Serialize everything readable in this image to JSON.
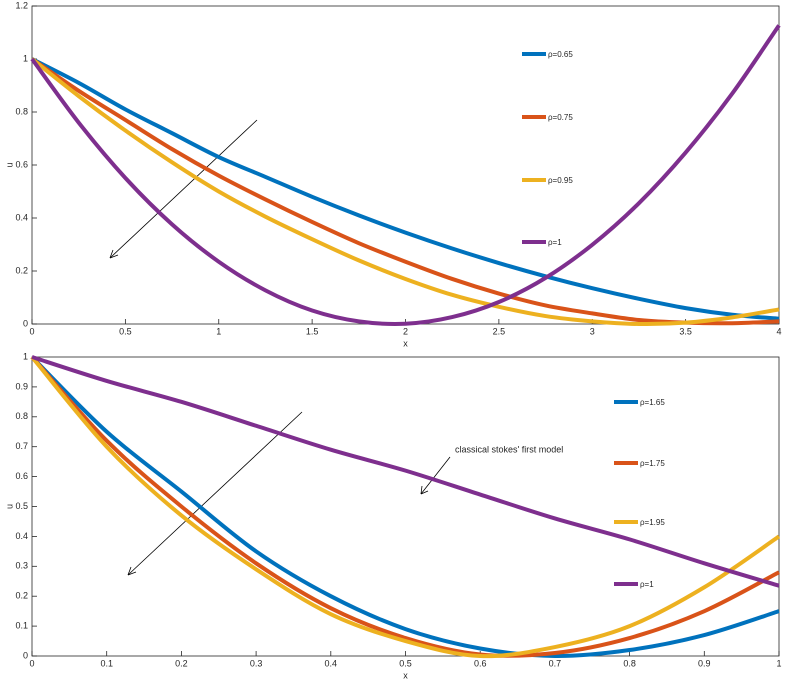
{
  "chart_data": [
    {
      "type": "line",
      "x_label": "x",
      "y_label": "u",
      "x": [
        0,
        0.25,
        0.5,
        0.75,
        1,
        1.25,
        1.5,
        1.75,
        2,
        2.25,
        2.5,
        2.75,
        3,
        3.25,
        3.5,
        3.75,
        4
      ],
      "xlim": [
        0,
        4
      ],
      "xticks": [
        0,
        0.5,
        1,
        1.5,
        2,
        2.5,
        3,
        3.5,
        4
      ],
      "ylim": [
        0,
        1.2
      ],
      "yticks": [
        0,
        0.2,
        0.4,
        0.6,
        0.8,
        1,
        1.2
      ],
      "series": [
        {
          "name": "ρ=0.65",
          "color": "#0072bd",
          "values": [
            1,
            0.91,
            0.81,
            0.72,
            0.63,
            0.555,
            0.48,
            0.41,
            0.345,
            0.285,
            0.23,
            0.18,
            0.135,
            0.095,
            0.06,
            0.035,
            0.02
          ]
        },
        {
          "name": "ρ=0.75",
          "color": "#d95319",
          "values": [
            1,
            0.88,
            0.77,
            0.66,
            0.56,
            0.47,
            0.385,
            0.305,
            0.235,
            0.17,
            0.115,
            0.07,
            0.04,
            0.015,
            0.005,
            0.003,
            0.01
          ]
        },
        {
          "name": "ρ=0.95",
          "color": "#edb120",
          "values": [
            1,
            0.86,
            0.73,
            0.61,
            0.5,
            0.405,
            0.32,
            0.24,
            0.17,
            0.11,
            0.065,
            0.03,
            0.01,
            0,
            0.005,
            0.025,
            0.055
          ]
        },
        {
          "name": "ρ=1",
          "color": "#7e2f8e",
          "values": [
            1,
            0.76,
            0.551,
            0.376,
            0.235,
            0.127,
            0.051,
            0.01,
            0.001,
            0.026,
            0.083,
            0.174,
            0.299,
            0.456,
            0.647,
            0.87,
            1.127
          ]
        }
      ]
    },
    {
      "type": "line",
      "x_label": "x",
      "y_label": "u",
      "annotation": "classical stokes' first model",
      "x": [
        0,
        0.1,
        0.2,
        0.3,
        0.4,
        0.5,
        0.6,
        0.7,
        0.8,
        0.9,
        1
      ],
      "xlim": [
        0,
        1
      ],
      "xticks": [
        0,
        0.1,
        0.2,
        0.3,
        0.4,
        0.5,
        0.6,
        0.7,
        0.8,
        0.9,
        1
      ],
      "ylim": [
        0,
        1
      ],
      "yticks": [
        0,
        0.1,
        0.2,
        0.3,
        0.4,
        0.5,
        0.6,
        0.7,
        0.8,
        0.9,
        1
      ],
      "series": [
        {
          "name": "ρ=1.65",
          "color": "#0072bd",
          "values": [
            1,
            0.75,
            0.55,
            0.35,
            0.2,
            0.09,
            0.025,
            0,
            0.02,
            0.07,
            0.15
          ]
        },
        {
          "name": "ρ=1.75",
          "color": "#d95319",
          "values": [
            1,
            0.72,
            0.5,
            0.31,
            0.16,
            0.06,
            0.005,
            0.01,
            0.06,
            0.15,
            0.28
          ]
        },
        {
          "name": "ρ=1.95",
          "color": "#edb120",
          "values": [
            1,
            0.7,
            0.47,
            0.29,
            0.14,
            0.05,
            0,
            0.03,
            0.1,
            0.23,
            0.4
          ]
        },
        {
          "name": "ρ=1",
          "color": "#7e2f8e",
          "values": [
            1,
            0.92,
            0.85,
            0.77,
            0.69,
            0.62,
            0.54,
            0.46,
            0.39,
            0.31,
            0.235
          ]
        }
      ]
    }
  ]
}
